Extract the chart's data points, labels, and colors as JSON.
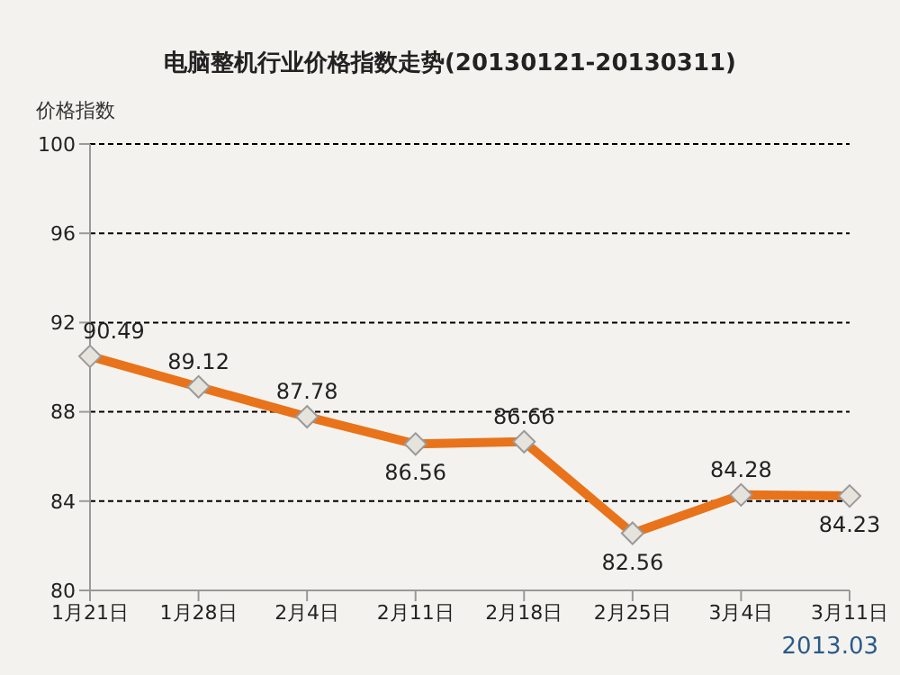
{
  "chart_data": {
    "type": "line",
    "title": "电脑整机行业价格指数走势(20130121-20130311)",
    "ylabel": "价格指数",
    "categories": [
      "1月21日",
      "1月28日",
      "2月4日",
      "2月11日",
      "2月18日",
      "2月25日",
      "3月4日",
      "3月11日"
    ],
    "series": [
      {
        "color": "#e8731a",
        "values": [
          90.49,
          89.12,
          87.78,
          86.56,
          86.66,
          82.56,
          84.28,
          84.23
        ]
      }
    ],
    "ylim": [
      80,
      100
    ],
    "yticks": [
      80,
      84,
      88,
      92,
      96,
      100
    ],
    "grid": "y",
    "marker": "diamond",
    "line_style": "solid",
    "data_labels": true,
    "legend": false,
    "annotations": [
      "2013.03"
    ]
  }
}
